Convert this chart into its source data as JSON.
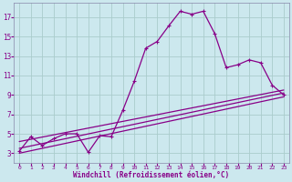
{
  "xlabel": "Windchill (Refroidissement éolien,°C)",
  "background_color": "#cce8ee",
  "line_color": "#880088",
  "grid_color": "#aacccc",
  "spine_color": "#8888aa",
  "xlim": [
    -0.5,
    23.5
  ],
  "ylim": [
    2.0,
    18.5
  ],
  "yticks": [
    3,
    5,
    7,
    9,
    11,
    13,
    15,
    17
  ],
  "xticks": [
    0,
    1,
    2,
    3,
    4,
    5,
    6,
    7,
    8,
    9,
    10,
    11,
    12,
    13,
    14,
    15,
    16,
    17,
    18,
    19,
    20,
    21,
    22,
    23
  ],
  "series1_x": [
    0,
    1,
    2,
    3,
    4,
    5,
    6,
    7,
    8,
    9,
    10,
    11,
    12,
    13,
    14,
    15,
    16,
    17,
    18,
    19,
    20,
    21,
    22,
    23
  ],
  "series1_y": [
    3.2,
    4.7,
    3.8,
    4.5,
    5.0,
    5.0,
    3.1,
    4.8,
    4.7,
    7.4,
    10.4,
    13.8,
    14.5,
    16.1,
    17.6,
    17.3,
    17.6,
    15.3,
    11.8,
    12.1,
    12.6,
    12.3,
    10.0,
    9.0
  ],
  "trend1_x": [
    0,
    23
  ],
  "trend1_y": [
    3.5,
    9.2
  ],
  "trend2_x": [
    0,
    23
  ],
  "trend2_y": [
    4.2,
    9.5
  ],
  "trend3_x": [
    0,
    23
  ],
  "trend3_y": [
    3.0,
    8.8
  ]
}
